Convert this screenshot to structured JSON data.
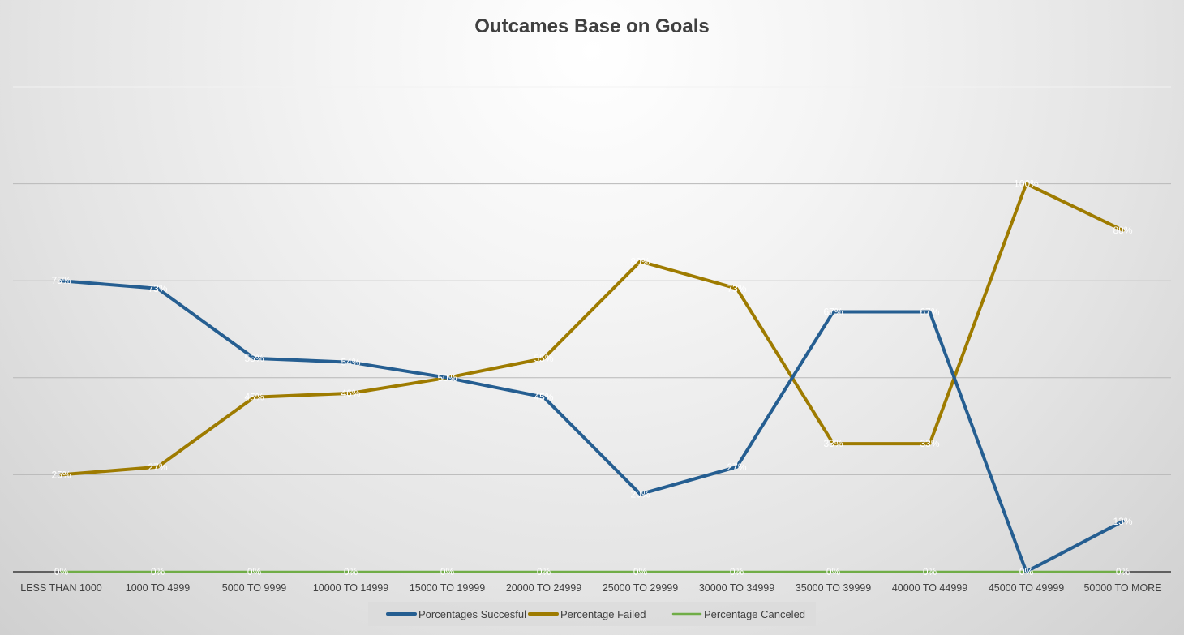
{
  "chart_data": {
    "type": "line",
    "title": "Outcames Base on Goals",
    "xlabel": "",
    "ylabel": "",
    "ylim": [
      0,
      1.25
    ],
    "grid": true,
    "legend_position": "bottom",
    "categories": [
      "LESS THAN 1000",
      "1000 TO 4999",
      "5000 TO 9999",
      "10000 TO 14999",
      "15000 TO 19999",
      "20000 TO 24999",
      "25000 TO 29999",
      "30000 TO 34999",
      "35000 TO 39999",
      "40000 TO 44999",
      "45000 TO 49999",
      "50000 TO MORE"
    ],
    "series": [
      {
        "name": "Porcentages Succesful",
        "color": "#255e91",
        "values": [
          0.75,
          0.73,
          0.55,
          0.54,
          0.5,
          0.45,
          0.2,
          0.27,
          0.67,
          0.67,
          0.0,
          0.13
        ],
        "labels": [
          "75%",
          "73%",
          "55%",
          "54%",
          "50%",
          "45%",
          "20%",
          "27%",
          "67%",
          "67%",
          "0%",
          "13%"
        ]
      },
      {
        "name": "Percentage Failed",
        "color": "#9e7b00",
        "values": [
          0.25,
          0.27,
          0.45,
          0.46,
          0.5,
          0.55,
          0.8,
          0.73,
          0.33,
          0.33,
          1.0,
          0.88
        ],
        "labels": [
          "25%",
          "27%",
          "45%",
          "46%",
          "50%",
          "55%",
          "80%",
          "73%",
          "33%",
          "33%",
          "100%",
          "88%"
        ]
      },
      {
        "name": "Percentage Canceled",
        "color": "#70ad47",
        "values": [
          0,
          0,
          0,
          0,
          0,
          0,
          0,
          0,
          0,
          0,
          0,
          0
        ],
        "labels": [
          "0%",
          "0%",
          "0%",
          "0%",
          "0%",
          "0%",
          "0%",
          "0%",
          "0%",
          "0%",
          "0%",
          "0%"
        ]
      }
    ]
  }
}
